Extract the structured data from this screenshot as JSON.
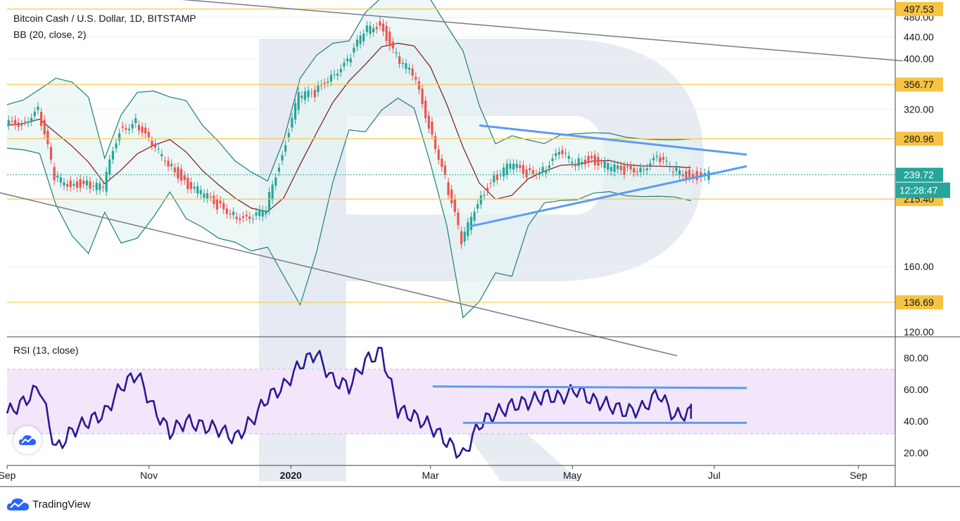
{
  "header": {
    "title": "Bitcoin Cash / U.S. Dollar, 1D, BITSTAMP",
    "indicator": "BB (20, close, 2)"
  },
  "rsi_panel": {
    "title": "RSI (13, close)"
  },
  "branding": {
    "label": "TradingView",
    "icon": "tradingview-cloud-icon"
  },
  "colors": {
    "candle_up": "#26a69a",
    "candle_down": "#ef5350",
    "bollinger_band": "#1f7f7a",
    "bollinger_basis": "#7b1a1a",
    "horizontal_level": "#f2c94c",
    "channel_line": "#787b86",
    "trend_line": "#5b9cf2",
    "rsi_line": "#2a1a96",
    "rsi_band_fill": "#f3e6fb",
    "price_badge": "#26a69a",
    "level_badge": "#f6c343"
  },
  "chart_data": [
    {
      "type": "candlestick",
      "title": "Bitcoin Cash / U.S. Dollar, 1D, BITSTAMP",
      "x_tick_labels": [
        "Sep",
        "Nov",
        "2020",
        "Mar",
        "May",
        "Jul",
        "Sep"
      ],
      "y_tick_labels": [
        "480.00",
        "440.00",
        "400.00",
        "320.00",
        "160.00",
        "120.00"
      ],
      "ylim": [
        120,
        502
      ],
      "last_price": "239.72",
      "countdown": "12:28:47",
      "horizontal_levels": [
        "497.53",
        "356.77",
        "280.96",
        "215.40",
        "136.69"
      ],
      "indicator": "BB (20, close, 2)",
      "series": [
        {
          "name": "close",
          "x": [
            "2019-09-01",
            "2019-09-08",
            "2019-09-15",
            "2019-09-22",
            "2019-09-29",
            "2019-10-06",
            "2019-10-13",
            "2019-10-20",
            "2019-10-27",
            "2019-11-03",
            "2019-11-10",
            "2019-11-17",
            "2019-11-24",
            "2019-12-01",
            "2019-12-08",
            "2019-12-15",
            "2019-12-22",
            "2019-12-29",
            "2020-01-05",
            "2020-01-12",
            "2020-01-19",
            "2020-01-26",
            "2020-02-02",
            "2020-02-09",
            "2020-02-16",
            "2020-02-23",
            "2020-03-01",
            "2020-03-08",
            "2020-03-15",
            "2020-03-22",
            "2020-03-29",
            "2020-04-05",
            "2020-04-12",
            "2020-04-19",
            "2020-04-26",
            "2020-05-03",
            "2020-05-10",
            "2020-05-17",
            "2020-05-24",
            "2020-05-31",
            "2020-06-07",
            "2020-06-14",
            "2020-06-21"
          ],
          "values": [
            298,
            303,
            318,
            235,
            231,
            230,
            226,
            292,
            304,
            270,
            254,
            232,
            221,
            210,
            203,
            194,
            208,
            262,
            340,
            342,
            375,
            392,
            450,
            468,
            402,
            372,
            300,
            235,
            176,
            214,
            236,
            250,
            242,
            246,
            262,
            254,
            257,
            248,
            244,
            248,
            256,
            246,
            239
          ]
        }
      ]
    },
    {
      "type": "line",
      "title": "RSI (13, close)",
      "y_tick_labels": [
        "80.00",
        "60.00",
        "40.00",
        "20.00"
      ],
      "ylim": [
        12,
        93
      ],
      "band": [
        30,
        70
      ],
      "series": [
        {
          "name": "RSI",
          "x": [
            "2019-09-01",
            "2019-09-08",
            "2019-09-15",
            "2019-09-22",
            "2019-09-29",
            "2019-10-06",
            "2019-10-13",
            "2019-10-20",
            "2019-10-27",
            "2019-11-03",
            "2019-11-10",
            "2019-11-17",
            "2019-11-24",
            "2019-12-01",
            "2019-12-08",
            "2019-12-15",
            "2019-12-22",
            "2019-12-29",
            "2020-01-05",
            "2020-01-12",
            "2020-01-19",
            "2020-01-26",
            "2020-02-02",
            "2020-02-09",
            "2020-02-16",
            "2020-02-23",
            "2020-03-01",
            "2020-03-08",
            "2020-03-15",
            "2020-03-22",
            "2020-03-29",
            "2020-04-05",
            "2020-04-12",
            "2020-04-19",
            "2020-04-26",
            "2020-05-03",
            "2020-05-10",
            "2020-05-17",
            "2020-05-24",
            "2020-05-31",
            "2020-06-07",
            "2020-06-14",
            "2020-06-21"
          ],
          "values": [
            45,
            52,
            62,
            22,
            34,
            40,
            45,
            62,
            70,
            48,
            33,
            40,
            37,
            35,
            29,
            40,
            55,
            62,
            76,
            83,
            66,
            62,
            78,
            84,
            47,
            43,
            37,
            27,
            18,
            38,
            45,
            50,
            52,
            56,
            55,
            60,
            53,
            50,
            46,
            48,
            58,
            43,
            46
          ]
        }
      ]
    }
  ]
}
